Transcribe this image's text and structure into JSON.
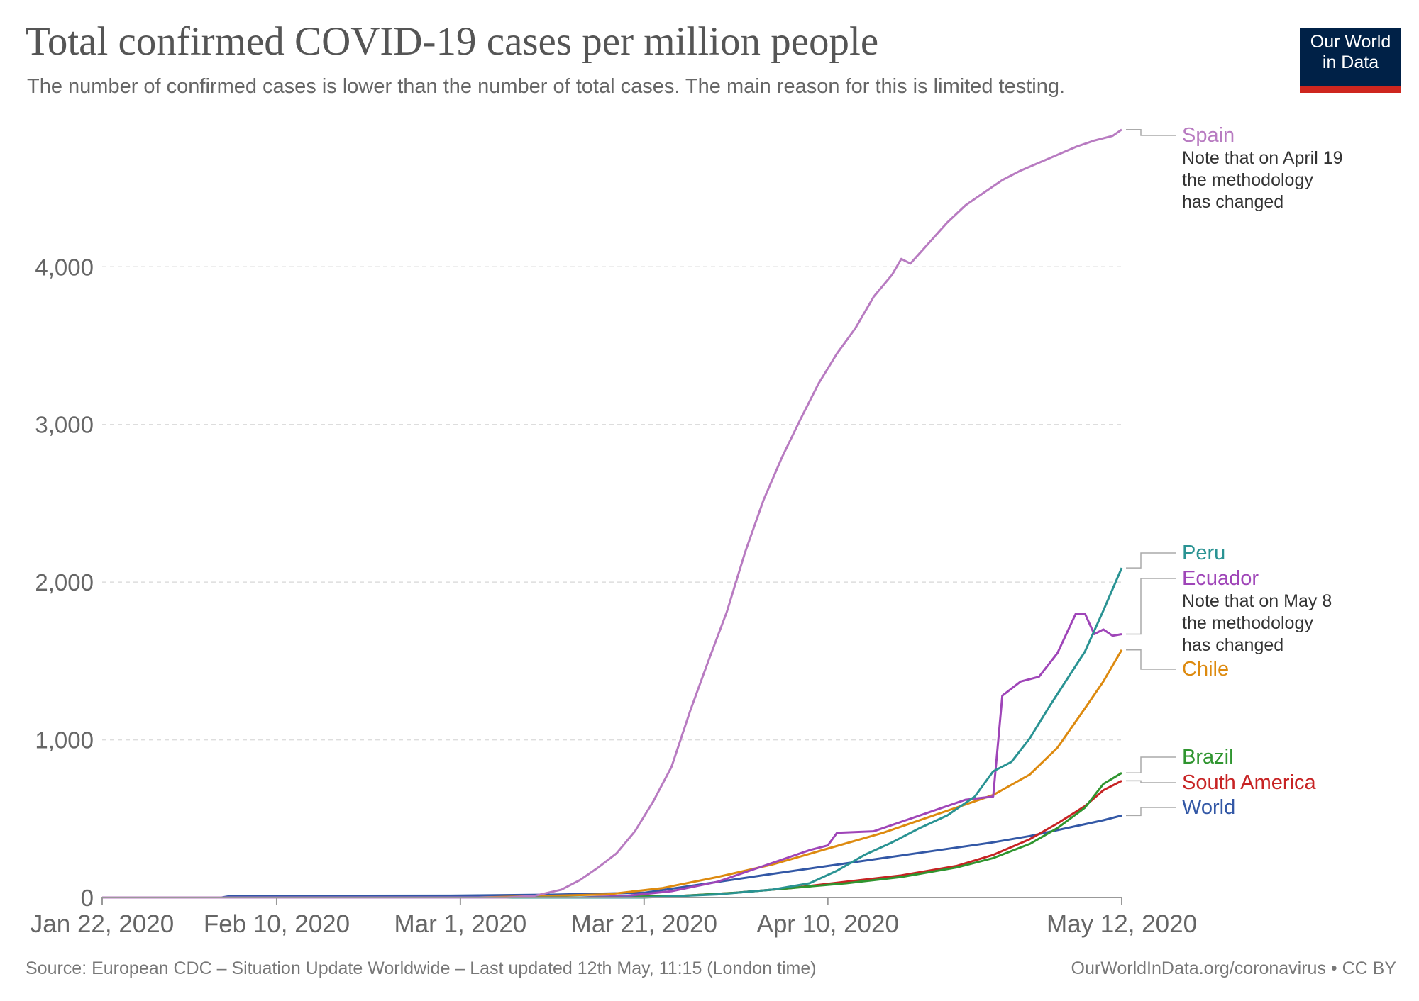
{
  "header": {
    "title": "Total confirmed COVID-19 cases per million people",
    "subtitle": "The number of confirmed cases is lower than the number of total cases. The main reason for this is limited testing."
  },
  "logo": {
    "line1": "Our World",
    "line2": "in Data"
  },
  "footer": {
    "source": "Source: European CDC – Situation Update Worldwide – Last updated 12th May, 11:15 (London time)",
    "credit": "OurWorldInData.org/coronavirus • CC BY"
  },
  "colors": {
    "Spain": "#b87bc1",
    "Peru": "#2a9393",
    "Ecuador": "#9f45b8",
    "Chile": "#dd8a0f",
    "Brazil": "#2f952f",
    "South America": "#c72324",
    "World": "#3358a6",
    "grid": "#dddddd",
    "axis": "#999999",
    "connector": "#aaaaaa"
  },
  "chart_data": {
    "type": "line",
    "title": "Total confirmed COVID-19 cases per million people",
    "x_start": "2020-01-22",
    "x_end": "2020-05-12",
    "ylim": [
      0,
      4860
    ],
    "y_ticks": [
      0,
      1000,
      2000,
      3000,
      4000
    ],
    "y_tick_labels": [
      "0",
      "1,000",
      "2,000",
      "3,000",
      "4,000"
    ],
    "x_ticks": [
      "2020-01-22",
      "2020-02-10",
      "2020-03-01",
      "2020-03-21",
      "2020-04-10",
      "2020-05-12"
    ],
    "x_tick_labels": [
      "Jan 22, 2020",
      "Feb 10, 2020",
      "Mar 1, 2020",
      "Mar 21, 2020",
      "Apr 10, 2020",
      "May 12, 2020"
    ],
    "grid": "horizontal dashed",
    "legend": "right of plot, at line ends",
    "series": [
      {
        "name": "Spain",
        "note": "Note that on April 19 the methodology has changed",
        "points": [
          [
            "2020-01-22",
            0
          ],
          [
            "2020-03-06",
            0
          ],
          [
            "2020-03-09",
            10
          ],
          [
            "2020-03-12",
            50
          ],
          [
            "2020-03-14",
            110
          ],
          [
            "2020-03-16",
            190
          ],
          [
            "2020-03-18",
            280
          ],
          [
            "2020-03-20",
            420
          ],
          [
            "2020-03-22",
            610
          ],
          [
            "2020-03-24",
            830
          ],
          [
            "2020-03-26",
            1180
          ],
          [
            "2020-03-28",
            1500
          ],
          [
            "2020-03-30",
            1810
          ],
          [
            "2020-04-01",
            2190
          ],
          [
            "2020-04-03",
            2520
          ],
          [
            "2020-04-05",
            2790
          ],
          [
            "2020-04-07",
            3030
          ],
          [
            "2020-04-09",
            3260
          ],
          [
            "2020-04-11",
            3450
          ],
          [
            "2020-04-13",
            3610
          ],
          [
            "2020-04-15",
            3810
          ],
          [
            "2020-04-17",
            3950
          ],
          [
            "2020-04-18",
            4050
          ],
          [
            "2020-04-19",
            4020
          ],
          [
            "2020-04-21",
            4150
          ],
          [
            "2020-04-23",
            4280
          ],
          [
            "2020-04-25",
            4390
          ],
          [
            "2020-04-27",
            4470
          ],
          [
            "2020-04-29",
            4550
          ],
          [
            "2020-05-01",
            4610
          ],
          [
            "2020-05-03",
            4660
          ],
          [
            "2020-05-05",
            4710
          ],
          [
            "2020-05-07",
            4760
          ],
          [
            "2020-05-09",
            4800
          ],
          [
            "2020-05-11",
            4830
          ],
          [
            "2020-05-12",
            4870
          ]
        ]
      },
      {
        "name": "Peru",
        "points": [
          [
            "2020-01-22",
            0
          ],
          [
            "2020-03-21",
            0
          ],
          [
            "2020-03-29",
            20
          ],
          [
            "2020-04-04",
            50
          ],
          [
            "2020-04-08",
            90
          ],
          [
            "2020-04-11",
            170
          ],
          [
            "2020-04-14",
            270
          ],
          [
            "2020-04-17",
            350
          ],
          [
            "2020-04-20",
            440
          ],
          [
            "2020-04-23",
            520
          ],
          [
            "2020-04-26",
            640
          ],
          [
            "2020-04-28",
            800
          ],
          [
            "2020-04-30",
            860
          ],
          [
            "2020-05-02",
            1010
          ],
          [
            "2020-05-04",
            1200
          ],
          [
            "2020-05-06",
            1380
          ],
          [
            "2020-05-08",
            1560
          ],
          [
            "2020-05-10",
            1820
          ],
          [
            "2020-05-12",
            2090
          ]
        ]
      },
      {
        "name": "Ecuador",
        "note": "Note that on May 8 the methodology has changed",
        "points": [
          [
            "2020-01-22",
            0
          ],
          [
            "2020-03-14",
            0
          ],
          [
            "2020-03-19",
            10
          ],
          [
            "2020-03-24",
            40
          ],
          [
            "2020-03-29",
            100
          ],
          [
            "2020-04-03",
            200
          ],
          [
            "2020-04-08",
            300
          ],
          [
            "2020-04-10",
            330
          ],
          [
            "2020-04-11",
            410
          ],
          [
            "2020-04-15",
            420
          ],
          [
            "2020-04-20",
            520
          ],
          [
            "2020-04-25",
            620
          ],
          [
            "2020-04-28",
            640
          ],
          [
            "2020-04-29",
            1280
          ],
          [
            "2020-05-01",
            1370
          ],
          [
            "2020-05-03",
            1400
          ],
          [
            "2020-05-05",
            1550
          ],
          [
            "2020-05-07",
            1800
          ],
          [
            "2020-05-08",
            1800
          ],
          [
            "2020-05-09",
            1670
          ],
          [
            "2020-05-10",
            1700
          ],
          [
            "2020-05-11",
            1660
          ],
          [
            "2020-05-12",
            1670
          ]
        ]
      },
      {
        "name": "Chile",
        "points": [
          [
            "2020-01-22",
            0
          ],
          [
            "2020-03-03",
            0
          ],
          [
            "2020-03-17",
            20
          ],
          [
            "2020-03-23",
            60
          ],
          [
            "2020-03-29",
            130
          ],
          [
            "2020-04-04",
            210
          ],
          [
            "2020-04-10",
            310
          ],
          [
            "2020-04-16",
            410
          ],
          [
            "2020-04-22",
            530
          ],
          [
            "2020-04-28",
            650
          ],
          [
            "2020-05-02",
            780
          ],
          [
            "2020-05-05",
            950
          ],
          [
            "2020-05-08",
            1200
          ],
          [
            "2020-05-10",
            1370
          ],
          [
            "2020-05-12",
            1570
          ]
        ]
      },
      {
        "name": "Brazil",
        "points": [
          [
            "2020-01-22",
            0
          ],
          [
            "2020-03-15",
            0
          ],
          [
            "2020-03-25",
            10
          ],
          [
            "2020-03-31",
            30
          ],
          [
            "2020-04-06",
            60
          ],
          [
            "2020-04-12",
            90
          ],
          [
            "2020-04-18",
            130
          ],
          [
            "2020-04-24",
            190
          ],
          [
            "2020-04-28",
            250
          ],
          [
            "2020-05-02",
            340
          ],
          [
            "2020-05-05",
            440
          ],
          [
            "2020-05-08",
            570
          ],
          [
            "2020-05-10",
            720
          ],
          [
            "2020-05-12",
            790
          ]
        ]
      },
      {
        "name": "South America",
        "points": [
          [
            "2020-01-22",
            0
          ],
          [
            "2020-03-15",
            0
          ],
          [
            "2020-03-25",
            10
          ],
          [
            "2020-03-31",
            30
          ],
          [
            "2020-04-06",
            60
          ],
          [
            "2020-04-12",
            100
          ],
          [
            "2020-04-18",
            140
          ],
          [
            "2020-04-24",
            200
          ],
          [
            "2020-04-28",
            270
          ],
          [
            "2020-05-02",
            370
          ],
          [
            "2020-05-05",
            470
          ],
          [
            "2020-05-08",
            580
          ],
          [
            "2020-05-10",
            680
          ],
          [
            "2020-05-12",
            740
          ]
        ]
      },
      {
        "name": "World",
        "points": [
          [
            "2020-01-22",
            0
          ],
          [
            "2020-02-04",
            0
          ],
          [
            "2020-02-05",
            10
          ],
          [
            "2020-03-01",
            12
          ],
          [
            "2020-03-11",
            18
          ],
          [
            "2020-03-21",
            30
          ],
          [
            "2020-03-28",
            90
          ],
          [
            "2020-04-04",
            150
          ],
          [
            "2020-04-10",
            200
          ],
          [
            "2020-04-16",
            250
          ],
          [
            "2020-04-22",
            300
          ],
          [
            "2020-04-28",
            350
          ],
          [
            "2020-05-02",
            390
          ],
          [
            "2020-05-06",
            440
          ],
          [
            "2020-05-10",
            490
          ],
          [
            "2020-05-12",
            520
          ]
        ]
      }
    ]
  }
}
